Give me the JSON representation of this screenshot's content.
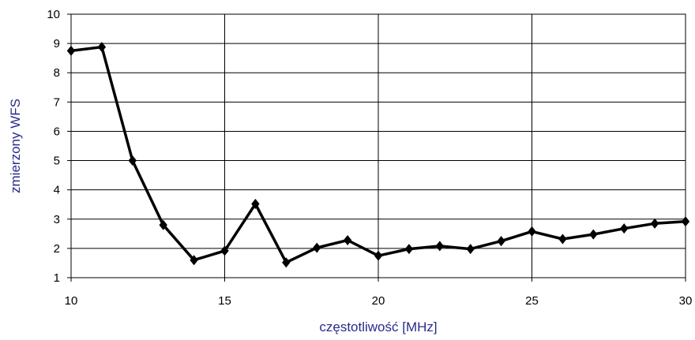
{
  "chart_data": {
    "type": "line",
    "xlabel": "częstotliwość [MHz]",
    "ylabel": "zmierzony WFS",
    "xlim": [
      10,
      30
    ],
    "ylim": [
      1,
      10
    ],
    "x_ticks": [
      "10",
      "15",
      "20",
      "25",
      "30"
    ],
    "y_ticks": [
      "1",
      "2",
      "3",
      "4",
      "5",
      "6",
      "7",
      "8",
      "9",
      "10"
    ],
    "grid": true,
    "marker": "diamond",
    "series": [
      {
        "x": [
          10,
          11,
          12,
          13,
          14,
          15,
          16,
          17,
          18,
          19,
          20,
          21,
          22,
          23,
          24,
          25,
          26,
          27,
          28,
          29,
          30
        ],
        "y": [
          8.75,
          8.88,
          5.0,
          2.8,
          1.6,
          1.92,
          3.52,
          1.52,
          2.02,
          2.28,
          1.75,
          1.98,
          2.08,
          1.98,
          2.25,
          2.58,
          2.32,
          2.48,
          2.68,
          2.85,
          2.92
        ]
      }
    ],
    "colors": {
      "line": "#000000",
      "axis_title": "#2b2b8c",
      "grid": "#000000"
    }
  }
}
